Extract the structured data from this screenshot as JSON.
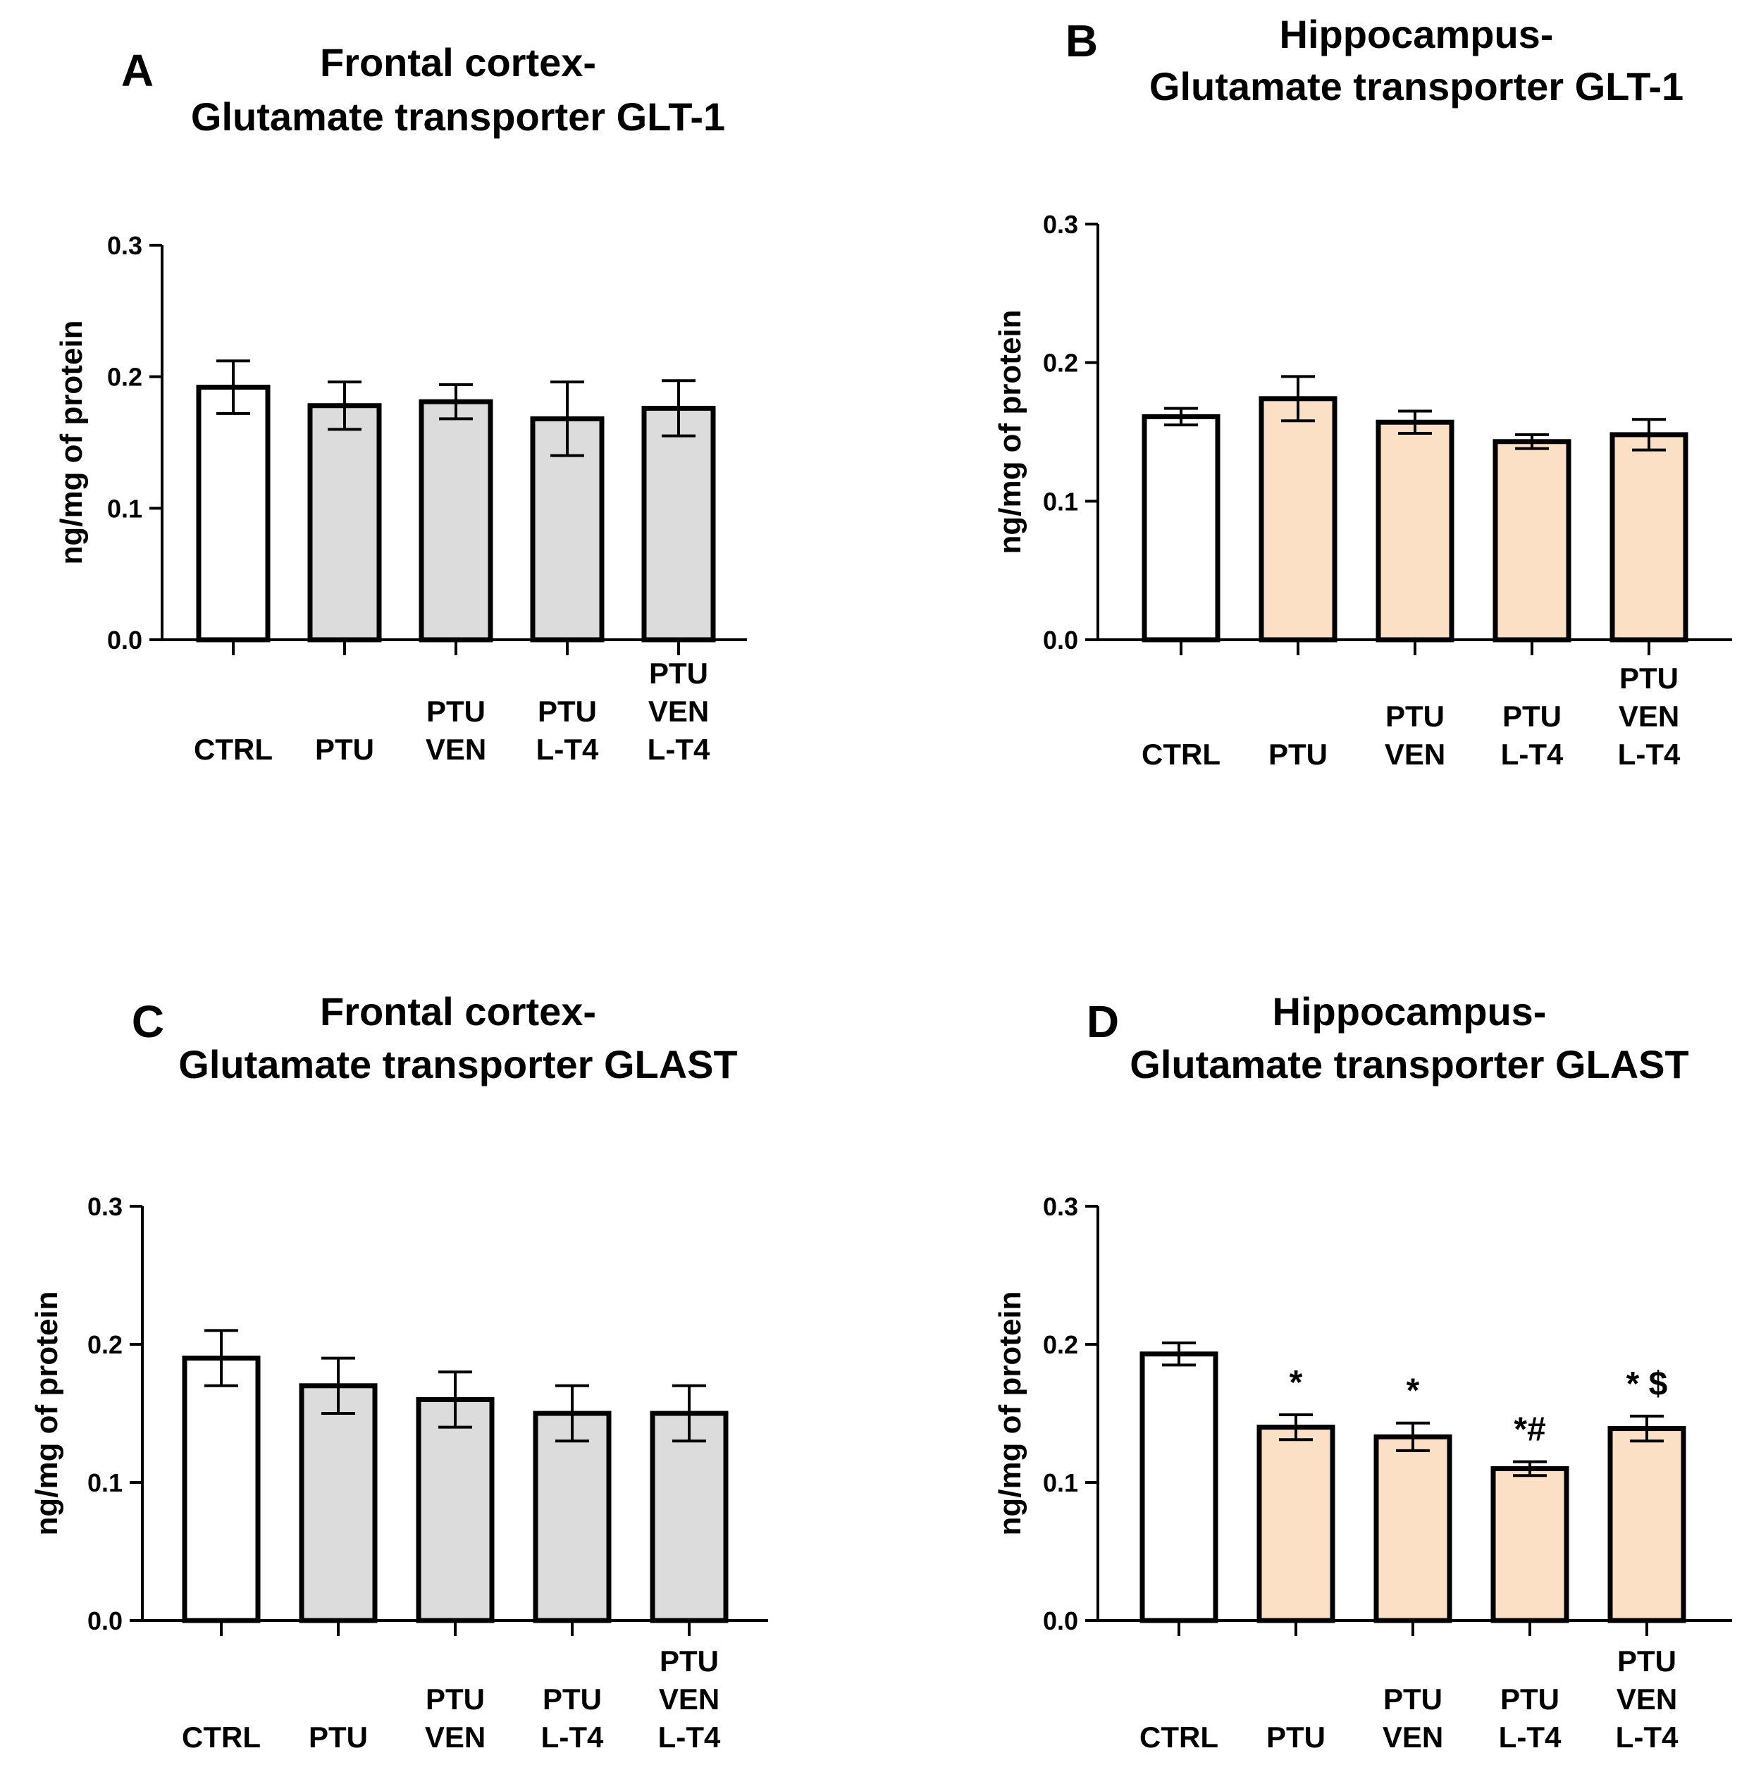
{
  "chart_data": [
    {
      "type": "bar",
      "panel_letter": "A",
      "title_lines": [
        "Frontal cortex-",
        "Glutamate transporter GLT-1"
      ],
      "ylabel": "ng/mg of protein",
      "ylim": [
        0,
        0.3
      ],
      "yticks": [
        "0.0",
        "0.1",
        "0.2",
        "0.3"
      ],
      "categories": [
        [
          "CTRL"
        ],
        [
          "PTU"
        ],
        [
          "PTU",
          "VEN"
        ],
        [
          "PTU",
          "L-T4"
        ],
        [
          "PTU",
          "VEN",
          "L-T4"
        ]
      ],
      "values": [
        0.192,
        0.178,
        0.181,
        0.168,
        0.176
      ],
      "errors": [
        0.02,
        0.018,
        0.013,
        0.028,
        0.021
      ],
      "significance": [
        "",
        "",
        "",
        "",
        ""
      ],
      "colors": {
        "control": "#ffffff",
        "treated": "#dcdcdc"
      }
    },
    {
      "type": "bar",
      "panel_letter": "B",
      "title_lines": [
        "Hippocampus-",
        "Glutamate transporter GLT-1"
      ],
      "ylabel": "ng/mg of protein",
      "ylim": [
        0,
        0.3
      ],
      "yticks": [
        "0.0",
        "0.1",
        "0.2",
        "0.3"
      ],
      "categories": [
        [
          "CTRL"
        ],
        [
          "PTU"
        ],
        [
          "PTU",
          "VEN"
        ],
        [
          "PTU",
          "L-T4"
        ],
        [
          "PTU",
          "VEN",
          "L-T4"
        ]
      ],
      "values": [
        0.161,
        0.174,
        0.157,
        0.143,
        0.148
      ],
      "errors": [
        0.006,
        0.016,
        0.008,
        0.005,
        0.011
      ],
      "significance": [
        "",
        "",
        "",
        "",
        ""
      ],
      "colors": {
        "control": "#ffffff",
        "treated": "#fce0c6"
      }
    },
    {
      "type": "bar",
      "panel_letter": "C",
      "title_lines": [
        "Frontal cortex-",
        "Glutamate transporter GLAST"
      ],
      "ylabel": "ng/mg of protein",
      "ylim": [
        0,
        0.3
      ],
      "yticks": [
        "0.0",
        "0.1",
        "0.2",
        "0.3"
      ],
      "categories": [
        [
          "CTRL"
        ],
        [
          "PTU"
        ],
        [
          "PTU",
          "VEN"
        ],
        [
          "PTU",
          "L-T4"
        ],
        [
          "PTU",
          "VEN",
          "L-T4"
        ]
      ],
      "values": [
        0.19,
        0.17,
        0.16,
        0.15,
        0.15
      ],
      "errors": [
        0.02,
        0.02,
        0.02,
        0.02,
        0.02
      ],
      "significance": [
        "",
        "",
        "",
        "",
        ""
      ],
      "colors": {
        "control": "#ffffff",
        "treated": "#dcdcdc"
      }
    },
    {
      "type": "bar",
      "panel_letter": "D",
      "title_lines": [
        "Hippocampus-",
        "Glutamate transporter GLAST"
      ],
      "ylabel": "ng/mg of protein",
      "ylim": [
        0,
        0.3
      ],
      "yticks": [
        "0.0",
        "0.1",
        "0.2",
        "0.3"
      ],
      "categories": [
        [
          "CTRL"
        ],
        [
          "PTU"
        ],
        [
          "PTU",
          "VEN"
        ],
        [
          "PTU",
          "L-T4"
        ],
        [
          "PTU",
          "VEN",
          "L-T4"
        ]
      ],
      "values": [
        0.193,
        0.14,
        0.133,
        0.11,
        0.139
      ],
      "errors": [
        0.008,
        0.009,
        0.01,
        0.005,
        0.009
      ],
      "significance": [
        "",
        "*",
        "*",
        "*#",
        "* $"
      ],
      "colors": {
        "control": "#ffffff",
        "treated": "#fce0c6"
      }
    }
  ]
}
